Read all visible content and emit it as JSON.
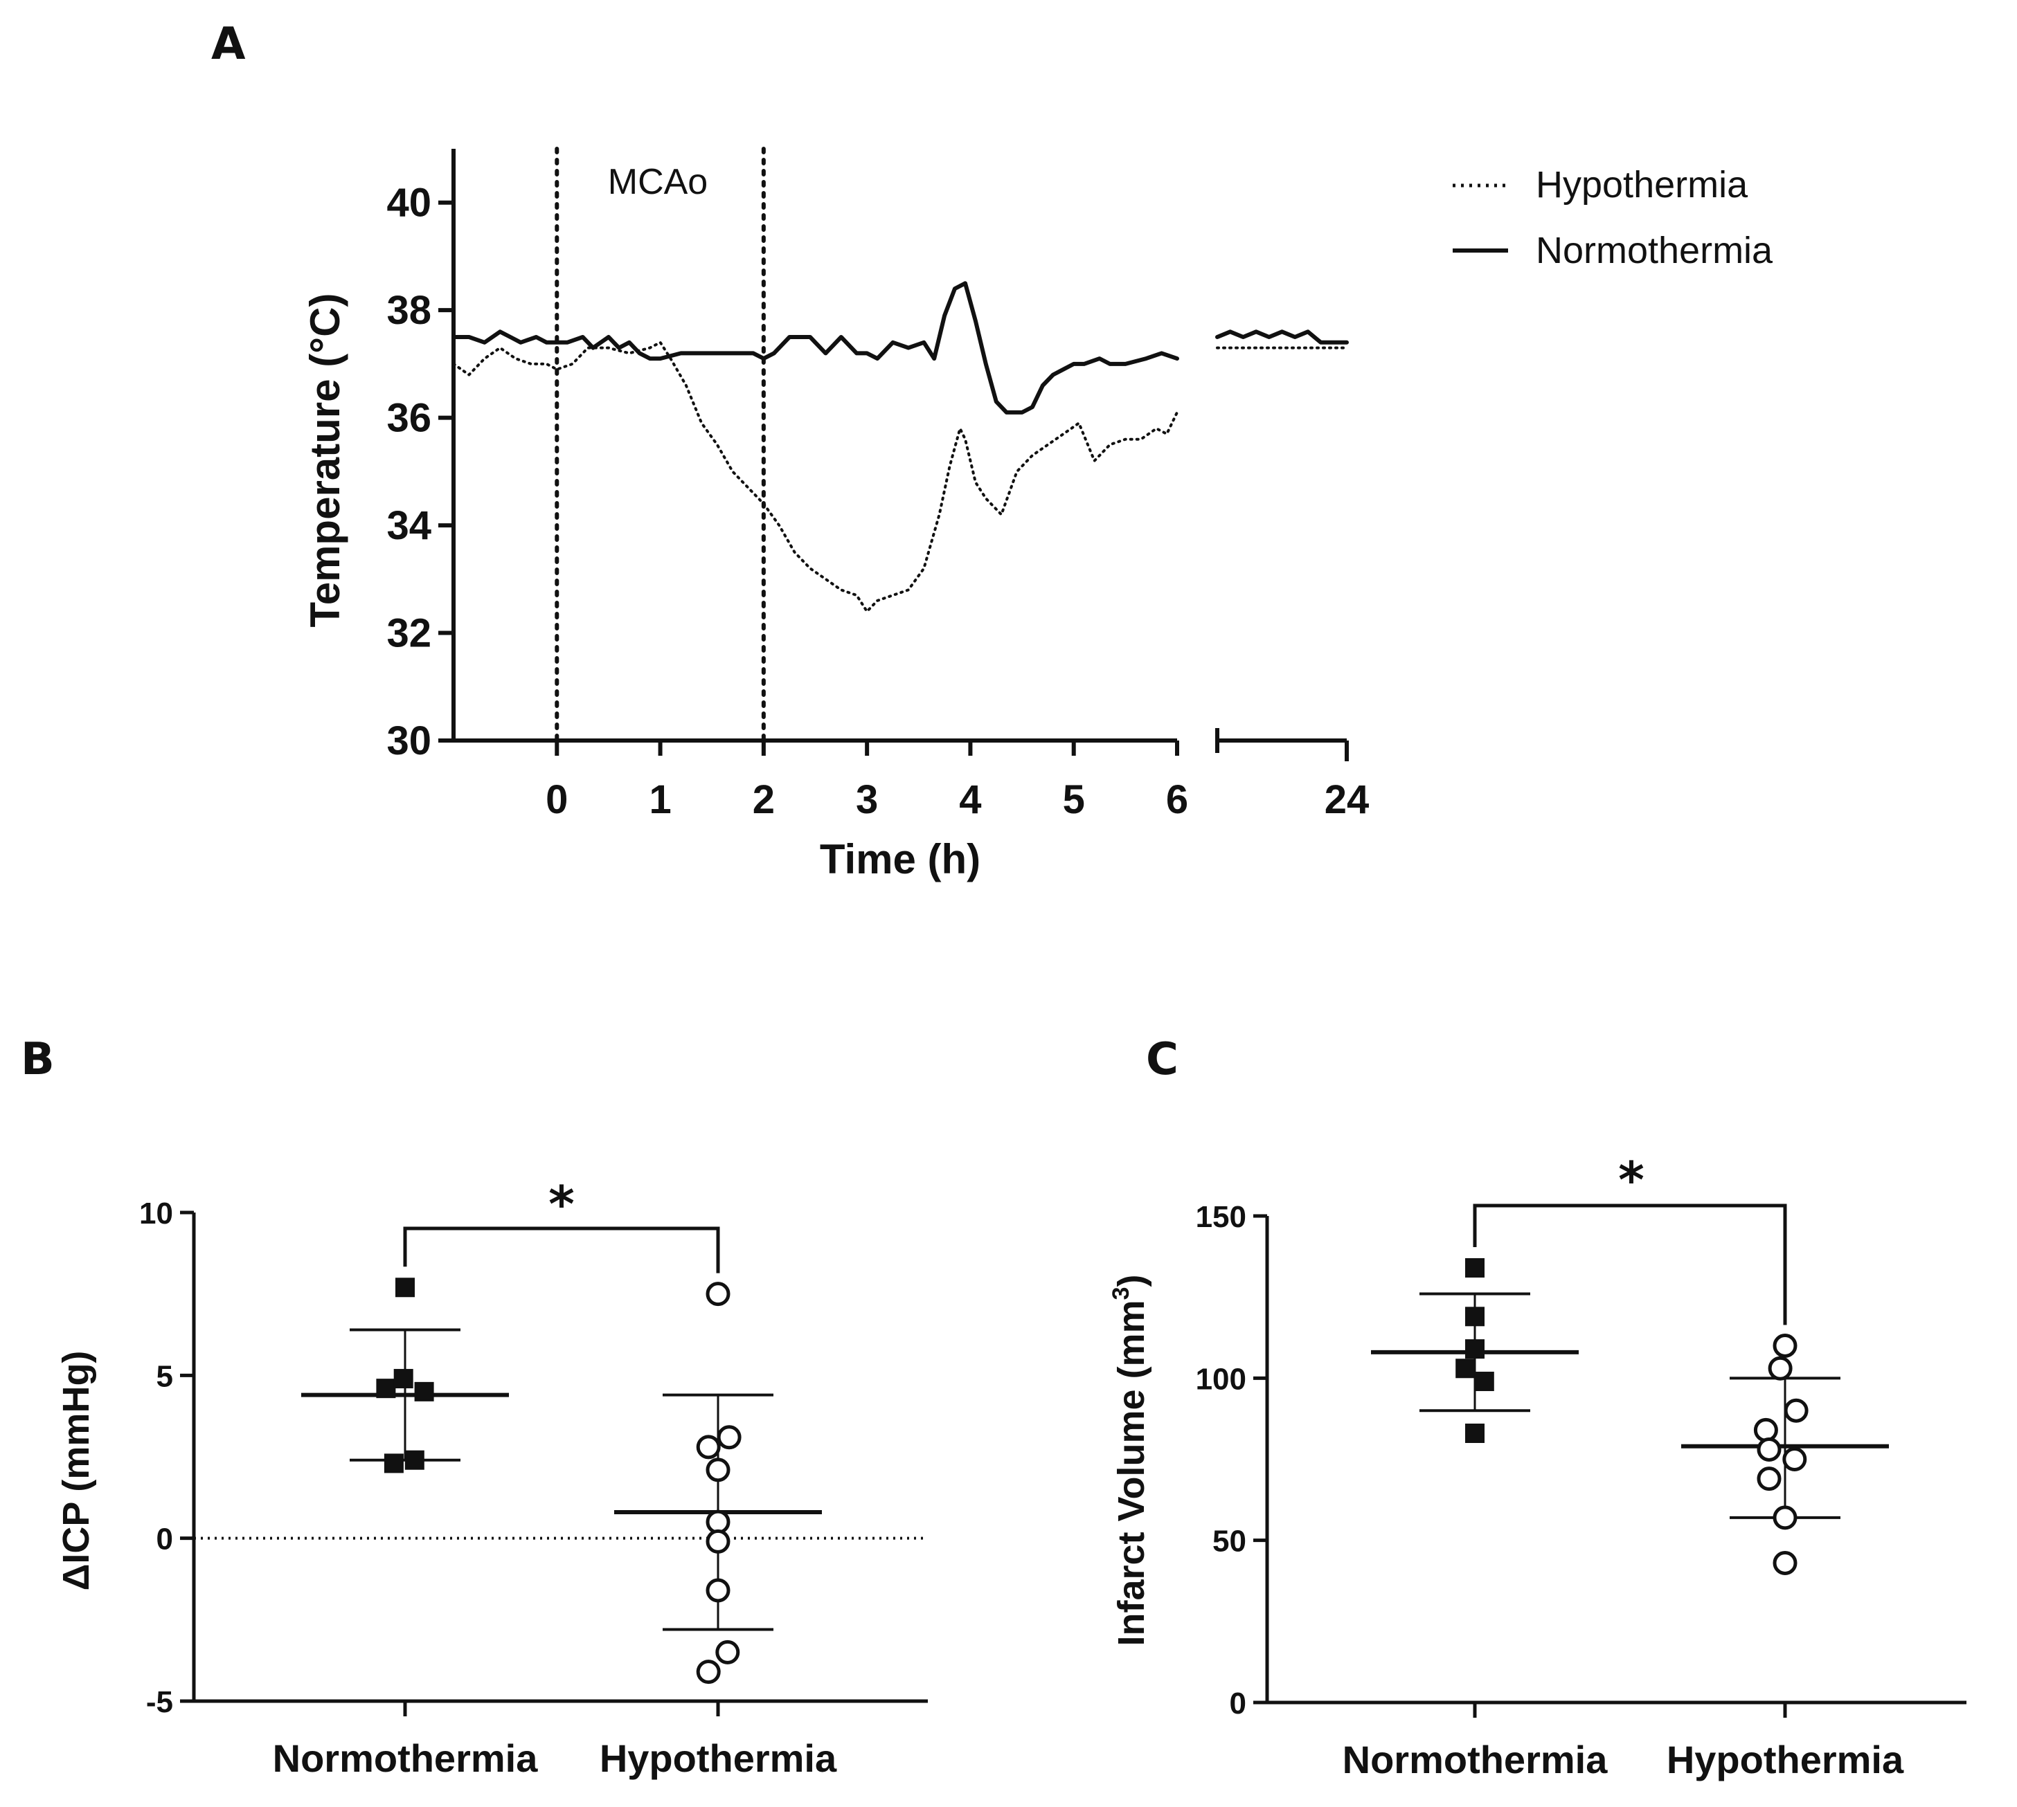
{
  "chart_data": [
    {
      "panel": "A",
      "type": "line",
      "ylabel": "Temperature (°C)",
      "xlabel": "Time (h)",
      "ylim": [
        30,
        41
      ],
      "yticks": [
        "30",
        "32",
        "34",
        "36",
        "38",
        "40"
      ],
      "ytick_values": [
        30,
        32,
        34,
        36,
        38,
        40
      ],
      "xticks": [
        "0",
        "1",
        "2",
        "3",
        "4",
        "5",
        "6"
      ],
      "xtick_values": [
        0,
        1,
        2,
        3,
        4,
        5,
        6
      ],
      "xlim": [
        -1,
        6
      ],
      "xbreak_tick": "24",
      "annotation": "MCAo",
      "vlines": [
        0,
        2
      ],
      "legend": [
        "Hypothermia",
        "Normothermia"
      ],
      "series": [
        {
          "name": "Hypothermia",
          "style": "dotted",
          "x": [
            -1,
            -0.85,
            -0.7,
            -0.55,
            -0.4,
            -0.25,
            -0.1,
            0,
            0.15,
            0.3,
            0.5,
            0.7,
            0.9,
            1,
            1.1,
            1.25,
            1.4,
            1.55,
            1.7,
            1.85,
            2,
            2.15,
            2.3,
            2.45,
            2.6,
            2.75,
            2.9,
            3,
            3.1,
            3.25,
            3.4,
            3.55,
            3.7,
            3.8,
            3.9,
            3.95,
            4.05,
            4.15,
            4.3,
            4.45,
            4.6,
            4.75,
            4.9,
            5.05,
            5.2,
            5.35,
            5.5,
            5.65,
            5.8,
            5.9,
            6
          ],
          "values": [
            37.0,
            36.8,
            37.1,
            37.3,
            37.1,
            37.0,
            37.0,
            36.9,
            37.0,
            37.3,
            37.3,
            37.2,
            37.3,
            37.4,
            37.1,
            36.6,
            35.9,
            35.5,
            35.0,
            34.7,
            34.4,
            34.0,
            33.5,
            33.2,
            33.0,
            32.8,
            32.7,
            32.4,
            32.6,
            32.7,
            32.8,
            33.2,
            34.2,
            35.1,
            35.8,
            35.6,
            34.8,
            34.5,
            34.2,
            35.0,
            35.3,
            35.5,
            35.7,
            35.9,
            35.2,
            35.5,
            35.6,
            35.6,
            35.8,
            35.7,
            36.1
          ],
          "x_after_break": [
            0,
            0.15,
            0.3,
            0.45,
            0.6,
            0.75,
            0.9,
            1
          ],
          "values_after_break": [
            37.3,
            37.3,
            37.3,
            37.3,
            37.3,
            37.3,
            37.3,
            37.3
          ]
        },
        {
          "name": "Normothermia",
          "style": "solid",
          "x": [
            -1,
            -0.85,
            -0.7,
            -0.55,
            -0.45,
            -0.35,
            -0.2,
            -0.1,
            0,
            0.1,
            0.25,
            0.35,
            0.5,
            0.6,
            0.7,
            0.8,
            0.9,
            1,
            1.2,
            1.4,
            1.6,
            1.8,
            1.9,
            2,
            2.1,
            2.25,
            2.45,
            2.6,
            2.75,
            2.9,
            3,
            3.1,
            3.25,
            3.4,
            3.55,
            3.65,
            3.75,
            3.85,
            3.95,
            4.05,
            4.15,
            4.25,
            4.35,
            4.5,
            4.6,
            4.7,
            4.8,
            4.9,
            5,
            5.1,
            5.25,
            5.35,
            5.5,
            5.7,
            5.85,
            6
          ],
          "values": [
            37.5,
            37.5,
            37.4,
            37.6,
            37.5,
            37.4,
            37.5,
            37.4,
            37.4,
            37.4,
            37.5,
            37.3,
            37.5,
            37.3,
            37.4,
            37.2,
            37.1,
            37.1,
            37.2,
            37.2,
            37.2,
            37.2,
            37.2,
            37.1,
            37.2,
            37.5,
            37.5,
            37.2,
            37.5,
            37.2,
            37.2,
            37.1,
            37.4,
            37.3,
            37.4,
            37.1,
            37.9,
            38.4,
            38.5,
            37.8,
            37.0,
            36.3,
            36.1,
            36.1,
            36.2,
            36.6,
            36.8,
            36.9,
            37.0,
            37.0,
            37.1,
            37.0,
            37.0,
            37.1,
            37.2,
            37.1
          ],
          "x_after_break": [
            0,
            0.1,
            0.2,
            0.3,
            0.4,
            0.5,
            0.6,
            0.7,
            0.8,
            0.9,
            1
          ],
          "values_after_break": [
            37.5,
            37.6,
            37.5,
            37.6,
            37.5,
            37.6,
            37.5,
            37.6,
            37.4,
            37.4,
            37.4
          ]
        }
      ]
    },
    {
      "panel": "B",
      "type": "scatter",
      "ylabel": "ΔICP (mmHg)",
      "ylim": [
        -5,
        10
      ],
      "yticks": [
        "-5",
        "0",
        "5",
        "10"
      ],
      "ytick_values": [
        -5,
        0,
        5,
        10
      ],
      "categories": [
        "Normothermia",
        "Hypothermia"
      ],
      "significance": "*",
      "reference_line": 0,
      "groups": [
        {
          "name": "Normothermia",
          "marker": "filled-square",
          "points": [
            [
              0,
              7.7
            ],
            [
              -0.12,
              4.6
            ],
            [
              -0.01,
              4.9
            ],
            [
              0.12,
              4.5
            ],
            [
              -0.07,
              2.3
            ],
            [
              0.06,
              2.4
            ]
          ],
          "mean": 4.4,
          "sd_low": 2.4,
          "sd_high": 6.4
        },
        {
          "name": "Hypothermia",
          "marker": "open-circle",
          "points": [
            [
              0,
              7.5
            ],
            [
              -0.06,
              2.8
            ],
            [
              0.07,
              3.1
            ],
            [
              0,
              2.1
            ],
            [
              0,
              0.5
            ],
            [
              0,
              -0.1
            ],
            [
              0,
              -1.6
            ],
            [
              -0.06,
              -4.1
            ],
            [
              0.06,
              -3.5
            ]
          ],
          "mean": 0.8,
          "sd_low": -2.8,
          "sd_high": 4.4
        }
      ]
    },
    {
      "panel": "C",
      "type": "scatter",
      "ylabel": "Infarct Volume (mm3)",
      "ylim": [
        0,
        150
      ],
      "yticks": [
        "0",
        "50",
        "100",
        "150"
      ],
      "ytick_values": [
        0,
        50,
        100,
        150
      ],
      "categories": [
        "Normothermia",
        "Hypothermia"
      ],
      "significance": "*",
      "groups": [
        {
          "name": "Normothermia",
          "marker": "filled-square",
          "points": [
            [
              0,
              134
            ],
            [
              0,
              119
            ],
            [
              0,
              109
            ],
            [
              -0.06,
              103
            ],
            [
              0.06,
              99
            ],
            [
              0,
              83
            ]
          ],
          "mean": 108,
          "sd_low": 90,
          "sd_high": 126
        },
        {
          "name": "Hypothermia",
          "marker": "open-circle",
          "points": [
            [
              0,
              110
            ],
            [
              -0.03,
              103
            ],
            [
              -0.12,
              84
            ],
            [
              0.07,
              90
            ],
            [
              -0.1,
              78
            ],
            [
              0.06,
              75
            ],
            [
              -0.1,
              69
            ],
            [
              0,
              57
            ],
            [
              0,
              43
            ]
          ],
          "mean": 79,
          "sd_low": 57,
          "sd_high": 100
        }
      ]
    }
  ],
  "panels": {
    "a": "A",
    "b": "B",
    "c": "C"
  }
}
